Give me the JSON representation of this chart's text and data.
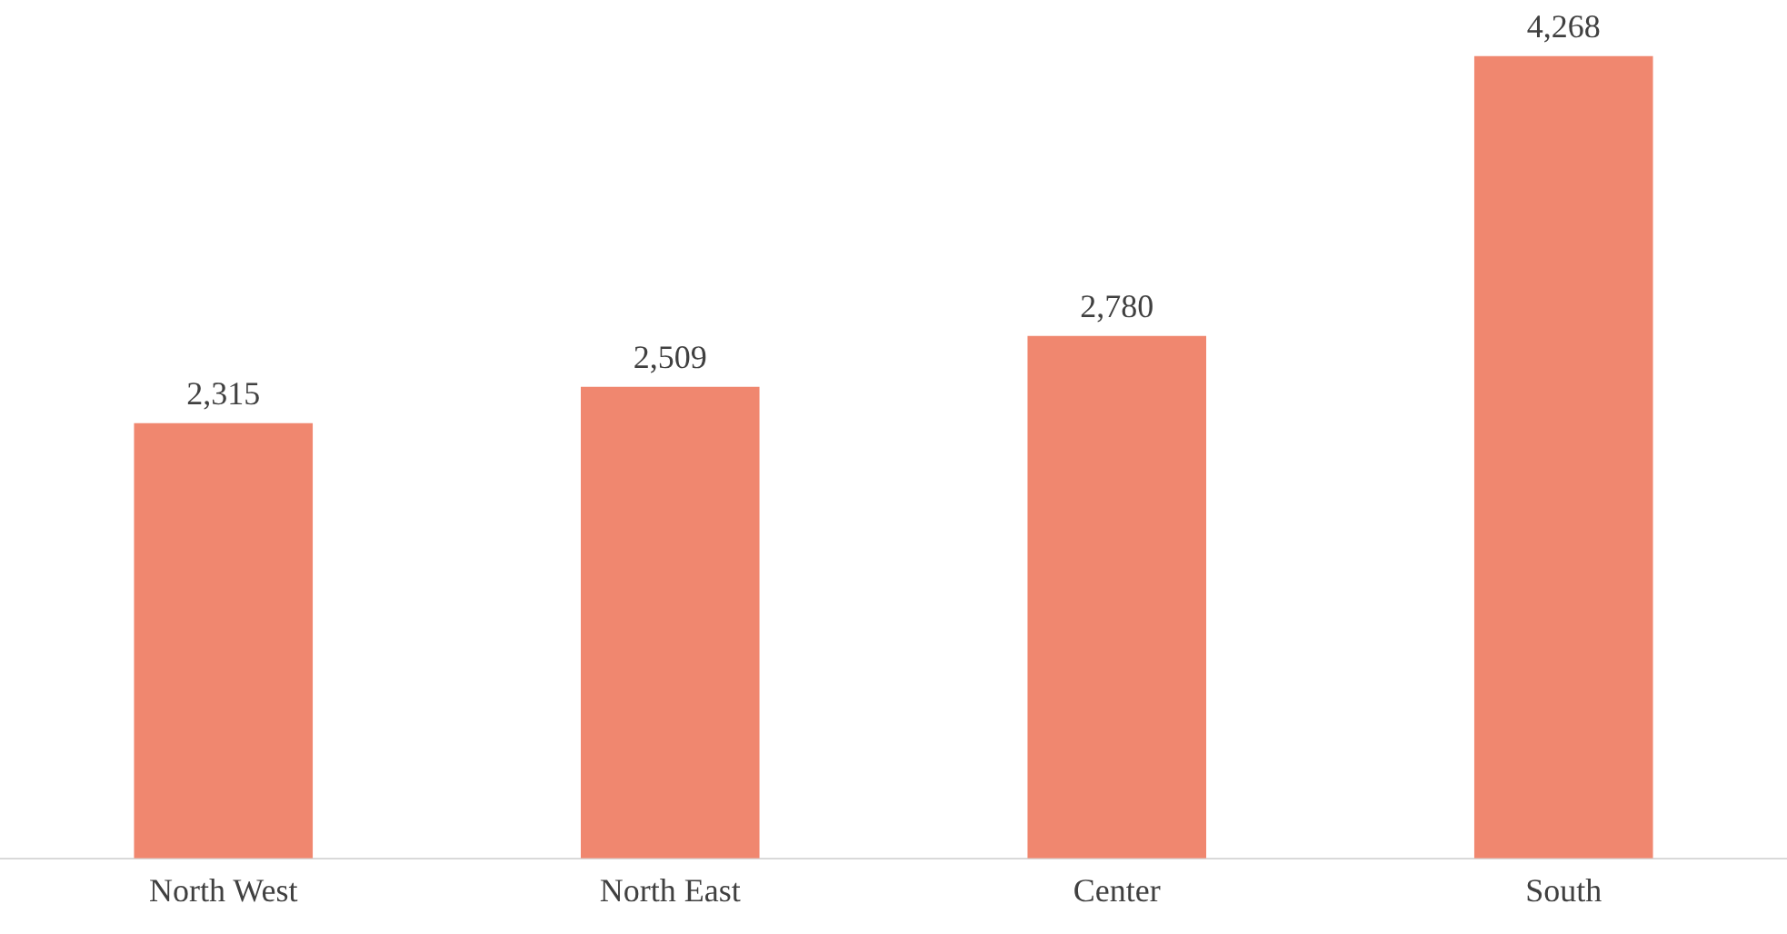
{
  "chart_data": {
    "type": "bar",
    "categories": [
      "North West",
      "North East",
      "Center",
      "South"
    ],
    "values": [
      2315,
      2509,
      2780,
      4268
    ],
    "value_labels": [
      "2,315",
      "2,509",
      "2,780",
      "4,268"
    ],
    "color": "#f0876f",
    "grid": false,
    "legend": false
  }
}
